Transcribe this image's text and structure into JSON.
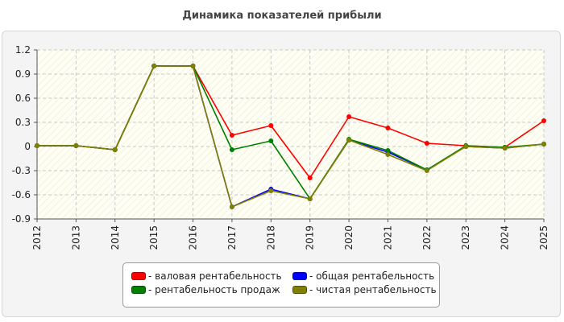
{
  "chart_data": {
    "type": "line",
    "title": "Динамика показателей прибыли",
    "xlabel": "",
    "ylabel": "",
    "x": [
      "2012",
      "2013",
      "2014",
      "2015",
      "2016",
      "2017",
      "2018",
      "2019",
      "2020",
      "2021",
      "2022",
      "2023",
      "2024",
      "2025"
    ],
    "ylim": [
      -0.9,
      1.2
    ],
    "yticks": [
      "1.2",
      "0.9",
      "0.6",
      "0.3",
      "0",
      "-0.3",
      "-0.6",
      "-0.9"
    ],
    "grid": true,
    "legend_position": "bottom",
    "series": [
      {
        "name": "- валовая рентабельность",
        "color": "#ff0000",
        "values": [
          0.01,
          0.01,
          -0.04,
          1.0,
          1.0,
          0.14,
          0.26,
          -0.39,
          0.37,
          0.23,
          0.04,
          0.01,
          -0.01,
          0.32
        ]
      },
      {
        "name": "- общая рентабельность",
        "color": "#0000ff",
        "values": [
          0.01,
          0.01,
          -0.04,
          1.0,
          1.0,
          -0.75,
          -0.53,
          -0.65,
          0.08,
          -0.07,
          -0.29,
          0.0,
          -0.02,
          0.03
        ]
      },
      {
        "name": "- рентабельность продаж",
        "color": "#008000",
        "values": [
          0.01,
          0.01,
          -0.04,
          1.0,
          1.0,
          -0.04,
          0.07,
          -0.65,
          0.09,
          -0.05,
          -0.29,
          0.01,
          -0.01,
          0.03
        ]
      },
      {
        "name": "- чистая рентабельность",
        "color": "#808000",
        "values": [
          0.01,
          0.01,
          -0.04,
          1.0,
          1.0,
          -0.75,
          -0.55,
          -0.65,
          0.08,
          -0.1,
          -0.3,
          0.0,
          -0.02,
          0.03
        ]
      }
    ]
  }
}
